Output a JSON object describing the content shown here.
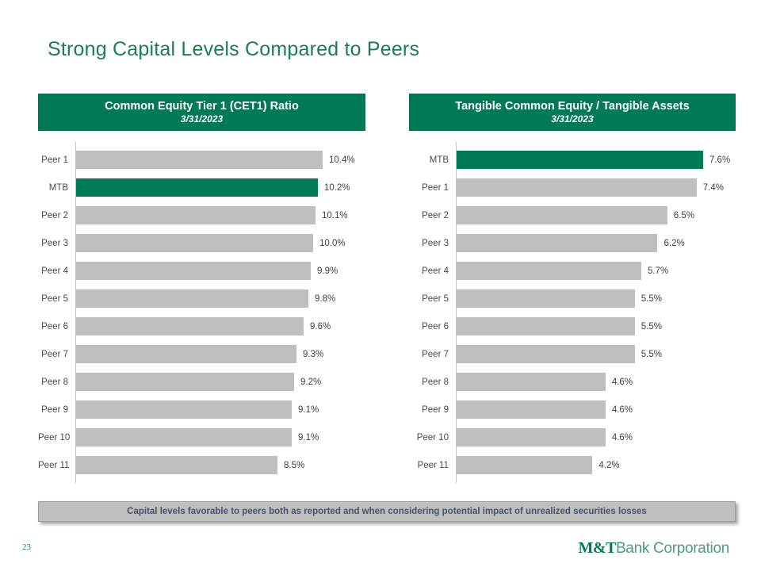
{
  "slide": {
    "title": "Strong Capital Levels Compared to Peers",
    "page_number": "23",
    "footer_banner_text": "Capital levels favorable to peers both as reported and when considering potential impact of unrealized securities losses",
    "logo": {
      "mt": "M&T",
      "rest": "Bank Corporation"
    }
  },
  "colors": {
    "brand_green": "#007A56",
    "title_green": "#1E7C55",
    "bar_gray": "#BFBFBF",
    "axis_gray": "#C9C9C9",
    "label_text": "#4A4A4A",
    "value_text": "#3F3F3F",
    "banner_bg": "#BFBFBF",
    "banner_border": "#9E9E9E",
    "banner_text": "#44546A",
    "logo_green_light": "#4F9A7E"
  },
  "chart_data": [
    {
      "type": "bar",
      "orientation": "horizontal",
      "title": "Common Equity Tier 1 (CET1) Ratio",
      "subtitle": "3/31/2023",
      "categories": [
        "Peer 1",
        "MTB",
        "Peer 2",
        "Peer 3",
        "Peer 4",
        "Peer 5",
        "Peer 6",
        "Peer 7",
        "Peer 8",
        "Peer 9",
        "Peer 10",
        "Peer 11"
      ],
      "values": [
        10.4,
        10.2,
        10.1,
        10.0,
        9.9,
        9.8,
        9.6,
        9.3,
        9.2,
        9.1,
        9.1,
        8.5
      ],
      "labels": [
        "10.4%",
        "10.2%",
        "10.1%",
        "10.0%",
        "9.9%",
        "9.8%",
        "9.6%",
        "9.3%",
        "9.2%",
        "9.1%",
        "9.1%",
        "8.5%"
      ],
      "unit": "%",
      "highlight_category": "MTB",
      "xlim": [
        0,
        12.2
      ],
      "grid": false,
      "legend": false
    },
    {
      "type": "bar",
      "orientation": "horizontal",
      "title": "Tangible Common Equity / Tangible Assets",
      "subtitle": "3/31/2023",
      "categories": [
        "MTB",
        "Peer 1",
        "Peer 2",
        "Peer 3",
        "Peer 4",
        "Peer 5",
        "Peer 6",
        "Peer 7",
        "Peer 8",
        "Peer 9",
        "Peer 10",
        "Peer 11"
      ],
      "values": [
        7.6,
        7.4,
        6.5,
        6.2,
        5.7,
        5.5,
        5.5,
        5.5,
        4.6,
        4.6,
        4.6,
        4.2
      ],
      "labels": [
        "7.6%",
        "7.4%",
        "6.5%",
        "6.2%",
        "5.7%",
        "5.5%",
        "5.5%",
        "5.5%",
        "4.6%",
        "4.6%",
        "4.6%",
        "4.2%"
      ],
      "unit": "%",
      "highlight_category": "MTB",
      "xlim": [
        0,
        8.6
      ],
      "grid": false,
      "legend": false
    }
  ]
}
